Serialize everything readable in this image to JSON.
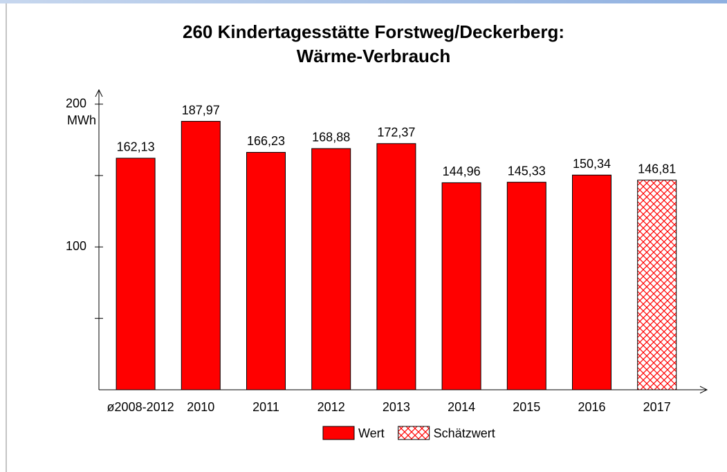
{
  "chart_data": {
    "type": "bar",
    "title": [
      "260 Kindertagesstätte Forstweg/Deckerberg:",
      "Wärme-Verbrauch"
    ],
    "y_unit": "MWh",
    "categories": [
      "ø2008-2012",
      "2010",
      "2011",
      "2012",
      "2013",
      "2014",
      "2015",
      "2016",
      "2017"
    ],
    "values": [
      162.13,
      187.97,
      166.23,
      168.88,
      172.37,
      144.96,
      145.33,
      150.34,
      146.81
    ],
    "value_labels": [
      "162,13",
      "187,97",
      "166,23",
      "168,88",
      "172,37",
      "144,96",
      "145,33",
      "150,34",
      "146,81"
    ],
    "styles": [
      "solid",
      "solid",
      "solid",
      "solid",
      "solid",
      "solid",
      "solid",
      "solid",
      "hatched"
    ],
    "color": "#ff0000",
    "ylim": [
      0,
      210
    ],
    "yticks": [
      100,
      200
    ],
    "minor_yticks": [
      50,
      150
    ],
    "legend": [
      {
        "name": "Wert",
        "style": "solid"
      },
      {
        "name": "Schätzwert",
        "style": "hatched"
      }
    ]
  }
}
